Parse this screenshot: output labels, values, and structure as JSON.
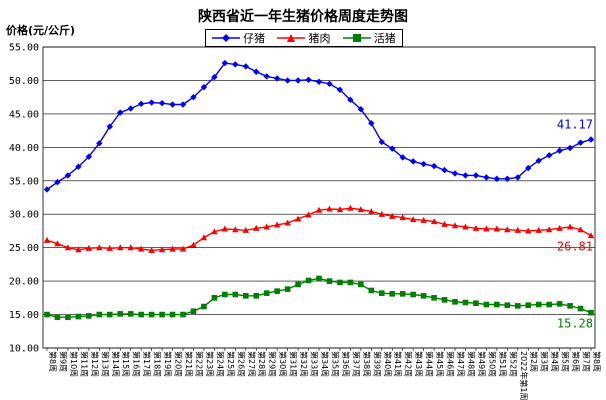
{
  "chart_data": {
    "type": "line",
    "title": "陕西省近一年生猪价格周度走势图",
    "ylabel": "价格(元/公斤)",
    "ylim": [
      10,
      55
    ],
    "yticks": [
      "10.00",
      "15.00",
      "20.00",
      "25.00",
      "30.00",
      "35.00",
      "40.00",
      "45.00",
      "50.00",
      "55.00"
    ],
    "grid": true,
    "legend_position": "top-center",
    "categories": [
      "第8周",
      "第9周",
      "第10周",
      "第11周",
      "第12周",
      "第13周",
      "第14周",
      "第15周",
      "第16周",
      "第17周",
      "第18周",
      "第19周",
      "第20周",
      "第21周",
      "第22周",
      "第23周",
      "第24周",
      "第25周",
      "第26周",
      "第27周",
      "第28周",
      "第29周",
      "第30周",
      "第31周",
      "第32周",
      "第33周",
      "第34周",
      "第35周",
      "第36周",
      "第37周",
      "第38周",
      "第39周",
      "第40周",
      "第41周",
      "第42周",
      "第43周",
      "第44周",
      "第45周",
      "第46周",
      "第47周",
      "第48周",
      "第49周",
      "第50周",
      "第51周",
      "第52周",
      "2022年第1周",
      "第2周",
      "第3周",
      "第4周",
      "第5周",
      "第6周",
      "第7周",
      "第8周"
    ],
    "series": [
      {
        "name": "仔猪",
        "color": "#0000ff",
        "marker": "diamond",
        "end_label": "41.17",
        "values": [
          33.7,
          34.8,
          35.8,
          37.1,
          38.6,
          40.6,
          43.1,
          45.2,
          45.8,
          46.5,
          46.7,
          46.6,
          46.4,
          46.4,
          47.5,
          49.0,
          50.5,
          52.6,
          52.4,
          52.1,
          51.3,
          50.6,
          50.3,
          50.0,
          50.0,
          50.1,
          49.8,
          49.5,
          48.6,
          47.1,
          45.7,
          43.6,
          40.8,
          39.8,
          38.5,
          37.9,
          37.5,
          37.2,
          36.6,
          36.1,
          35.8,
          35.8,
          35.5,
          35.3,
          35.3,
          35.5,
          36.9,
          38.0,
          38.8,
          39.5,
          39.9,
          40.7,
          41.17
        ]
      },
      {
        "name": "猪肉",
        "color": "#ff0000",
        "marker": "triangle",
        "end_label": "26.81",
        "values": [
          26.1,
          25.6,
          25.0,
          24.7,
          24.9,
          25.0,
          24.9,
          25.0,
          25.0,
          24.8,
          24.6,
          24.7,
          24.8,
          24.8,
          25.4,
          26.5,
          27.4,
          27.8,
          27.7,
          27.6,
          27.9,
          28.1,
          28.4,
          28.7,
          29.3,
          29.9,
          30.6,
          30.8,
          30.7,
          30.9,
          30.7,
          30.4,
          30.0,
          29.7,
          29.5,
          29.2,
          29.1,
          28.9,
          28.5,
          28.3,
          28.1,
          27.9,
          27.8,
          27.8,
          27.7,
          27.6,
          27.5,
          27.6,
          27.7,
          27.9,
          28.1,
          27.7,
          26.81
        ]
      },
      {
        "name": "活猪",
        "color": "#008000",
        "marker": "square",
        "end_label": "15.28",
        "values": [
          15.0,
          14.6,
          14.6,
          14.7,
          14.8,
          15.0,
          15.0,
          15.1,
          15.1,
          15.0,
          15.0,
          15.0,
          15.0,
          15.0,
          15.5,
          16.2,
          17.5,
          18.0,
          18.0,
          17.8,
          17.8,
          18.2,
          18.5,
          18.8,
          19.5,
          20.1,
          20.4,
          20.0,
          19.8,
          19.8,
          19.5,
          18.6,
          18.2,
          18.1,
          18.1,
          18.0,
          17.8,
          17.5,
          17.2,
          16.9,
          16.8,
          16.7,
          16.5,
          16.5,
          16.4,
          16.3,
          16.4,
          16.5,
          16.5,
          16.6,
          16.3,
          15.9,
          15.28
        ]
      }
    ]
  }
}
